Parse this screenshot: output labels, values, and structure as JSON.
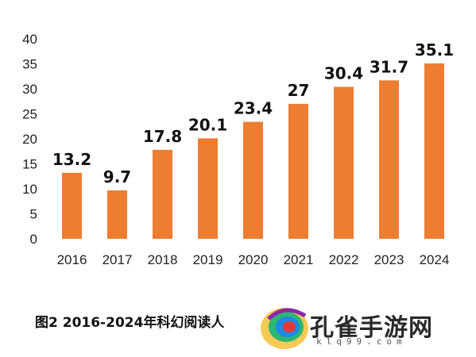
{
  "chart_data": {
    "type": "bar",
    "categories": [
      "2016",
      "2017",
      "2018",
      "2019",
      "2020",
      "2021",
      "2022",
      "2023",
      "2024"
    ],
    "values": [
      13.2,
      9.7,
      17.8,
      20.1,
      23.4,
      27,
      30.4,
      31.7,
      35.1
    ],
    "value_labels": [
      "13.2",
      "9.7",
      "17.8",
      "20.1",
      "23.4",
      "27",
      "30.4",
      "31.7",
      "35.1"
    ],
    "y_ticks": [
      "0",
      "5",
      "10",
      "15",
      "20",
      "25",
      "30",
      "35",
      "40"
    ],
    "ylim": [
      0,
      40
    ],
    "grid": false,
    "legend": "none",
    "bar_color": "#ED7D31",
    "title": "",
    "xlabel": "",
    "ylabel": ""
  },
  "caption": "图2  2016-2024年科幻阅读人",
  "watermark": {
    "brand": "孔雀手游网",
    "url": "klq99.com"
  }
}
